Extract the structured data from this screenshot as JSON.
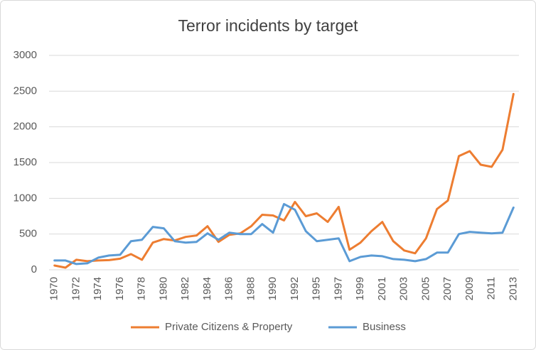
{
  "chart_data": {
    "type": "line",
    "title": "Terror incidents by target",
    "categories": [
      "1970",
      null,
      "1972",
      null,
      "1974",
      null,
      "1976",
      null,
      "1978",
      null,
      "1980",
      null,
      "1982",
      null,
      "1984",
      null,
      "1986",
      null,
      "1988",
      null,
      "1990",
      null,
      "1992",
      null,
      "1995",
      null,
      "1997",
      null,
      "1999",
      null,
      "2001",
      null,
      "2003",
      null,
      "2005",
      null,
      "2007",
      null,
      "2009",
      null,
      "2011",
      null,
      "2013"
    ],
    "series": [
      {
        "name": "Private Citizens & Property",
        "color": "#ed7d31",
        "values": [
          60,
          30,
          140,
          120,
          130,
          135,
          155,
          220,
          140,
          380,
          430,
          410,
          460,
          480,
          610,
          390,
          490,
          510,
          610,
          770,
          760,
          690,
          950,
          750,
          790,
          670,
          880,
          280,
          380,
          540,
          670,
          400,
          270,
          230,
          440,
          850,
          970,
          1590,
          1660,
          1470,
          1440,
          1680,
          2460
        ]
      },
      {
        "name": "Business",
        "color": "#5b9bd5",
        "values": [
          130,
          130,
          80,
          90,
          170,
          200,
          210,
          400,
          420,
          600,
          580,
          400,
          380,
          390,
          510,
          420,
          520,
          500,
          500,
          640,
          520,
          920,
          840,
          540,
          400,
          420,
          440,
          120,
          180,
          200,
          190,
          150,
          140,
          120,
          150,
          240,
          240,
          500,
          530,
          520,
          510,
          520,
          870
        ]
      }
    ],
    "ylim": [
      0,
      3000
    ],
    "yticks": [
      0,
      500,
      1000,
      1500,
      2000,
      2500,
      3000
    ],
    "grid": true,
    "legend": "bottom"
  }
}
